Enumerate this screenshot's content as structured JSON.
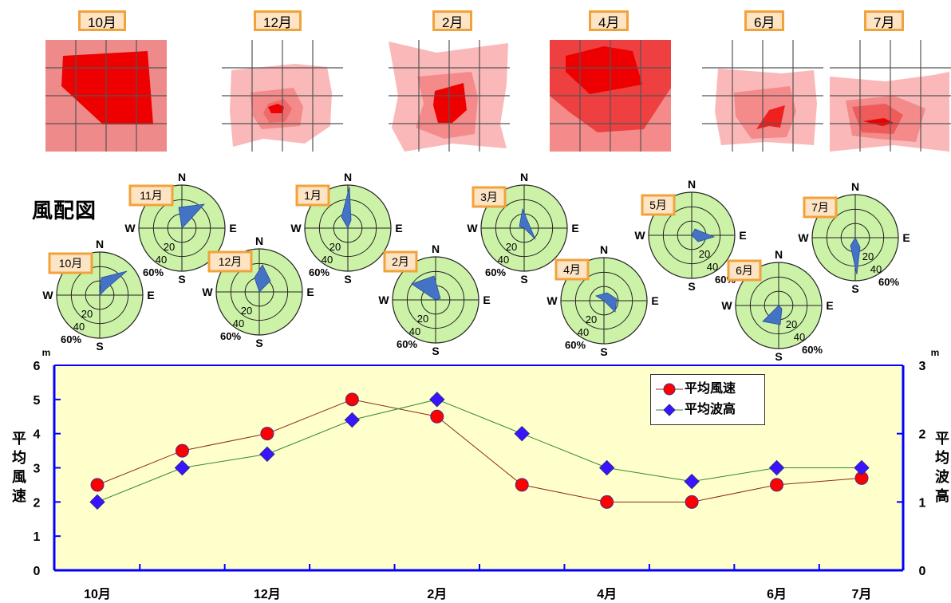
{
  "top_panels": [
    {
      "month": "10月"
    },
    {
      "month": "12月"
    },
    {
      "month": "2月"
    },
    {
      "month": "4月"
    },
    {
      "month": "6月"
    },
    {
      "month": "7月"
    }
  ],
  "wind_rose_section": {
    "title": "風配図",
    "directions": [
      "N",
      "E",
      "S",
      "W"
    ],
    "rings": [
      "20",
      "40",
      "60%"
    ],
    "roses": [
      {
        "month": "10月"
      },
      {
        "month": "11月"
      },
      {
        "month": "12月"
      },
      {
        "month": "1月"
      },
      {
        "month": "2月"
      },
      {
        "month": "3月"
      },
      {
        "month": "4月"
      },
      {
        "month": "5月"
      },
      {
        "month": "6月"
      },
      {
        "month": "7月"
      }
    ]
  },
  "chart_data": {
    "type": "line",
    "x_tick_labels": [
      "10月",
      "",
      "12月",
      "",
      "2月",
      "",
      "4月",
      "",
      "6月",
      "7月"
    ],
    "series": [
      {
        "name": "平均風速",
        "values": [
          2.5,
          3.5,
          4.0,
          5.0,
          4.5,
          2.5,
          2.0,
          2.0,
          2.5,
          2.7
        ],
        "axis": "left",
        "color": "#ff0000",
        "marker": "circle",
        "line_color": "#8b2a1a"
      },
      {
        "name": "平均波高",
        "values": [
          1.0,
          1.5,
          1.7,
          2.2,
          2.5,
          2.0,
          1.5,
          1.3,
          1.5,
          1.5
        ],
        "axis": "right",
        "color": "#3a14ff",
        "marker": "diamond",
        "line_color": "#2e8b2e"
      }
    ],
    "y_left": {
      "label": "平均風速",
      "unit": "m",
      "range": [
        0,
        6
      ],
      "ticks": [
        "0",
        "1",
        "2",
        "3",
        "4",
        "5",
        "6"
      ]
    },
    "y_right": {
      "label": "平均波高",
      "unit": "m",
      "range": [
        0,
        3
      ],
      "ticks": [
        "0",
        "1",
        "2",
        "3"
      ]
    },
    "legend_position": "top-right",
    "background": "#ffffcc",
    "axis_color": "#0000ff"
  }
}
